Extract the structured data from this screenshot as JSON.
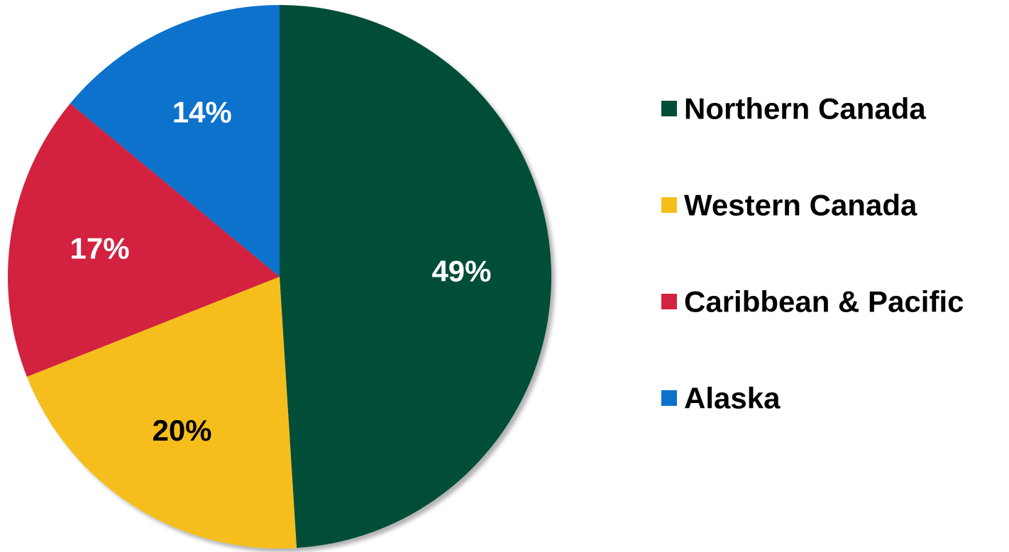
{
  "chart_data": {
    "type": "pie",
    "title": "",
    "start_angle_deg": 0,
    "direction": "clockwise",
    "legend_position": "right",
    "slices": [
      {
        "name": "Northern Canada",
        "value": 49,
        "label": "49%",
        "color": "#004D39",
        "label_color": "#FFFFFF"
      },
      {
        "name": "Western Canada",
        "value": 20,
        "label": "20%",
        "color": "#F6BE1A",
        "label_color": "#000000"
      },
      {
        "name": "Caribbean & Pacific",
        "value": 17,
        "label": "17%",
        "color": "#D22441",
        "label_color": "#FFFFFF"
      },
      {
        "name": "Alaska",
        "value": 14,
        "label": "14%",
        "color": "#0A72CC",
        "label_color": "#FFFFFF"
      }
    ]
  }
}
